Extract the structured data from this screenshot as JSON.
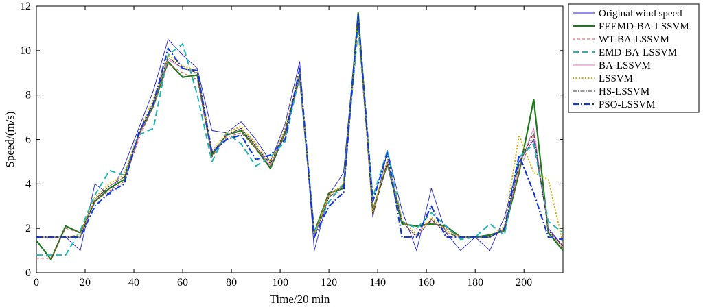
{
  "chart_data": {
    "type": "line",
    "title": "",
    "xlabel": "Time/20 min",
    "ylabel": "Speed/(m/s)",
    "xlim": [
      0,
      216
    ],
    "ylim": [
      0,
      12
    ],
    "x_ticks": [
      0,
      20,
      40,
      60,
      80,
      100,
      120,
      140,
      160,
      180,
      200
    ],
    "y_ticks": [
      0,
      2,
      4,
      6,
      8,
      10,
      12
    ],
    "grid": false,
    "legend_position": "outside-right",
    "x": [
      0,
      6,
      12,
      18,
      24,
      30,
      36,
      42,
      48,
      54,
      60,
      66,
      72,
      78,
      84,
      90,
      96,
      102,
      108,
      114,
      120,
      126,
      132,
      138,
      144,
      150,
      156,
      162,
      168,
      174,
      180,
      186,
      192,
      198,
      204,
      210,
      216
    ],
    "series": [
      {
        "name": "Original wind speed",
        "color": "#1f1fd6",
        "style": "solid",
        "width": 0.9,
        "values": [
          1.6,
          1.6,
          1.6,
          1.0,
          4.0,
          3.5,
          4.8,
          6.5,
          8.2,
          10.5,
          9.8,
          9.2,
          6.4,
          6.3,
          6.8,
          6.0,
          5.0,
          6.7,
          9.5,
          1.0,
          3.5,
          4.5,
          11.6,
          2.5,
          5.5,
          2.8,
          1.0,
          3.8,
          1.8,
          1.0,
          1.6,
          1.0,
          2.5,
          5.0,
          6.0,
          2.0,
          1.2
        ]
      },
      {
        "name": "FEEMD-BA-LSSVM",
        "color": "#1d7a1d",
        "style": "solid",
        "width": 2.2,
        "values": [
          1.45,
          0.6,
          2.1,
          1.8,
          3.2,
          3.8,
          4.2,
          6.2,
          7.5,
          9.5,
          8.8,
          8.9,
          5.3,
          6.2,
          6.4,
          5.6,
          4.7,
          6.3,
          8.8,
          1.8,
          3.6,
          3.8,
          11.7,
          2.8,
          4.9,
          2.2,
          2.1,
          2.2,
          2.1,
          1.6,
          1.6,
          1.7,
          1.9,
          4.5,
          7.8,
          1.8,
          1.0
        ]
      },
      {
        "name": "WT-BA-LSSVM",
        "color": "#e05050",
        "style": "dashed",
        "width": 1.0,
        "values": [
          0.65,
          0.65,
          2.0,
          1.8,
          3.2,
          3.7,
          4.1,
          6.0,
          7.5,
          9.4,
          9.0,
          8.7,
          5.2,
          6.1,
          6.3,
          5.6,
          4.9,
          6.2,
          8.7,
          1.7,
          3.6,
          3.9,
          11.4,
          2.8,
          4.9,
          2.3,
          2.0,
          2.3,
          2.0,
          1.6,
          1.6,
          1.6,
          1.9,
          4.6,
          6.2,
          1.9,
          1.1
        ]
      },
      {
        "name": "EMD-BA-LSSVM",
        "color": "#20b5b5",
        "style": "longdash",
        "width": 2.0,
        "values": [
          0.8,
          0.8,
          0.8,
          1.9,
          3.5,
          4.6,
          4.4,
          6.2,
          6.5,
          9.8,
          10.3,
          8.0,
          5.0,
          6.3,
          5.8,
          4.8,
          5.2,
          5.9,
          8.9,
          1.8,
          3.2,
          4.0,
          11.0,
          3.4,
          5.5,
          2.3,
          2.0,
          2.7,
          2.1,
          1.5,
          1.6,
          2.2,
          1.7,
          5.2,
          5.8,
          2.3,
          1.8
        ]
      },
      {
        "name": "BA-LSSVM",
        "color": "#d878b8",
        "style": "solid",
        "width": 1.0,
        "values": [
          1.6,
          1.6,
          1.6,
          1.6,
          3.3,
          3.9,
          4.3,
          6.1,
          7.7,
          9.6,
          9.2,
          9.0,
          5.4,
          6.2,
          6.5,
          5.7,
          4.8,
          6.4,
          8.9,
          1.6,
          3.4,
          3.9,
          11.5,
          2.6,
          5.0,
          2.3,
          1.6,
          2.4,
          1.8,
          1.6,
          1.6,
          1.6,
          2.0,
          4.8,
          6.5,
          1.9,
          1.2
        ]
      },
      {
        "name": "LSSVM",
        "color": "#c9b000",
        "style": "dotted",
        "width": 2.0,
        "values": [
          1.6,
          1.6,
          1.6,
          1.7,
          3.4,
          4.0,
          4.4,
          6.3,
          7.8,
          9.8,
          9.3,
          9.1,
          5.5,
          6.3,
          6.6,
          5.8,
          5.0,
          6.5,
          9.0,
          1.7,
          3.5,
          4.0,
          11.3,
          2.7,
          5.1,
          2.4,
          1.7,
          2.5,
          1.9,
          1.6,
          1.6,
          1.6,
          2.1,
          6.2,
          4.5,
          4.2,
          1.3
        ]
      },
      {
        "name": "HS-LSSVM",
        "color": "#333333",
        "style": "dashdot",
        "width": 0.9,
        "values": [
          1.6,
          1.6,
          1.6,
          1.6,
          3.3,
          3.9,
          4.3,
          6.2,
          7.7,
          9.7,
          9.2,
          9.0,
          5.4,
          6.2,
          6.5,
          5.7,
          4.9,
          6.4,
          8.9,
          1.6,
          3.4,
          3.9,
          11.4,
          2.6,
          5.0,
          2.3,
          1.6,
          2.4,
          1.8,
          1.6,
          1.6,
          1.6,
          2.0,
          4.9,
          6.3,
          1.9,
          1.2
        ]
      },
      {
        "name": "PSO-LSSVM",
        "color": "#1238d8",
        "style": "bolddashdot",
        "width": 2.2,
        "values": [
          1.6,
          1.6,
          1.6,
          1.6,
          3.0,
          3.6,
          4.0,
          6.3,
          7.6,
          10.1,
          9.2,
          9.1,
          5.4,
          6.0,
          6.2,
          5.1,
          5.3,
          6.0,
          9.2,
          1.6,
          3.0,
          3.6,
          11.6,
          3.2,
          5.4,
          1.6,
          1.6,
          3.0,
          1.6,
          1.6,
          1.6,
          1.6,
          2.0,
          5.3,
          3.6,
          1.6,
          1.5
        ]
      }
    ]
  }
}
